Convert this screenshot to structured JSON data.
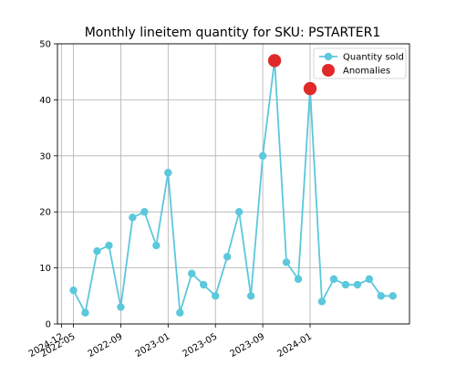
{
  "chart_data": {
    "type": "line",
    "title": "Monthly lineitem quantity for SKU: PSTARTER1",
    "xlabel": "",
    "ylabel": "",
    "x_dates": [
      "2022-05",
      "2022-06",
      "2022-07",
      "2022-08",
      "2022-09",
      "2022-10",
      "2022-11",
      "2022-12",
      "2023-01",
      "2023-02",
      "2023-03",
      "2023-04",
      "2023-05",
      "2023-06",
      "2023-07",
      "2023-08",
      "2023-09",
      "2023-10",
      "2023-11",
      "2023-12",
      "2024-01",
      "2024-02",
      "2024-03",
      "2024-04",
      "2024-05",
      "2024-06",
      "2024-07",
      "2024-08"
    ],
    "x_ticks": [
      "2022-05",
      "2022-09",
      "2023-01",
      "2023-05",
      "2023-09",
      "2024-01",
      "2024-12"
    ],
    "ylim": [
      0,
      50
    ],
    "y_ticks": [
      "0",
      "10",
      "20",
      "30",
      "40",
      "50"
    ],
    "grid": true,
    "legend_position": "top-right",
    "series": [
      {
        "name": "Quantity sold",
        "color": "#5bc8dc",
        "values": [
          6,
          2,
          13,
          14,
          3,
          19,
          20,
          14,
          27,
          2,
          9,
          7,
          5,
          12,
          20,
          5,
          30,
          47,
          11,
          8,
          42,
          4,
          8,
          7,
          7,
          8,
          5,
          5
        ]
      },
      {
        "name": "Anomalies",
        "color": "#e02a2a",
        "marker_only": true,
        "points": [
          {
            "x": "2023-10",
            "y": 47
          },
          {
            "x": "2024-01",
            "y": 42
          }
        ]
      }
    ]
  }
}
